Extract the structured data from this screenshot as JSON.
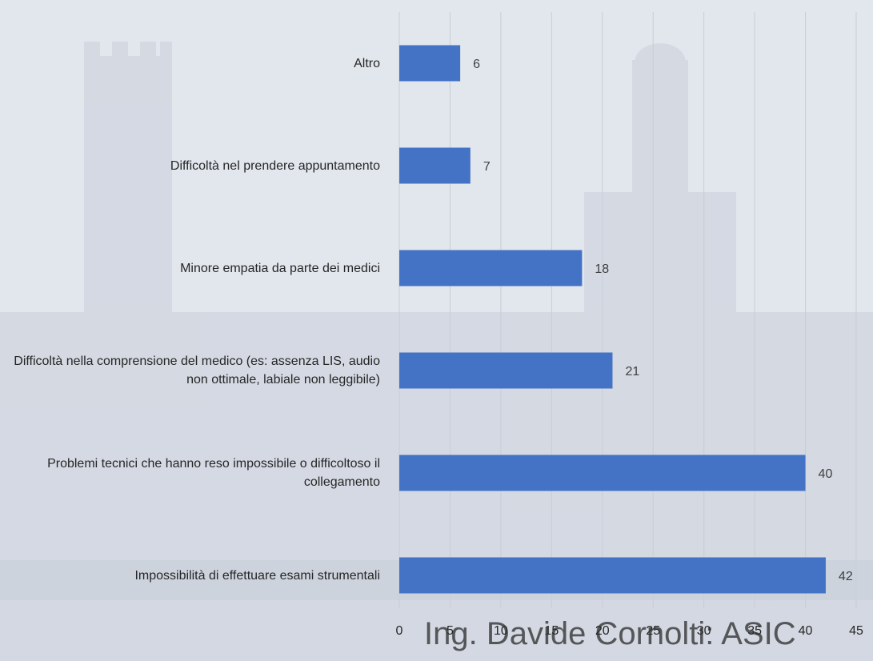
{
  "footer_text": "Ing. Davide Cornolti: ASIC",
  "chart_data": {
    "type": "bar",
    "orientation": "horizontal",
    "categories": [
      "Altro",
      "Difficoltà nel prendere appuntamento",
      "Minore empatia da parte dei medici",
      "Difficoltà nella comprensione del medico (es: assenza LIS, audio non ottimale, labiale non leggibile)",
      "Problemi tecnici che hanno reso impossibile o difficoltoso il collegamento",
      "Impossibilità di effettuare esami strumentali"
    ],
    "values": [
      6,
      7,
      18,
      21,
      40,
      42
    ],
    "xlim": [
      0,
      45
    ],
    "xticks": [
      0,
      5,
      10,
      15,
      20,
      25,
      30,
      35,
      40,
      45
    ],
    "grid": true,
    "data_labels": true,
    "colors": {
      "bar": "#4472c4",
      "grid": "#c9cdd6",
      "label": "#404040",
      "tick": "#262626"
    }
  }
}
